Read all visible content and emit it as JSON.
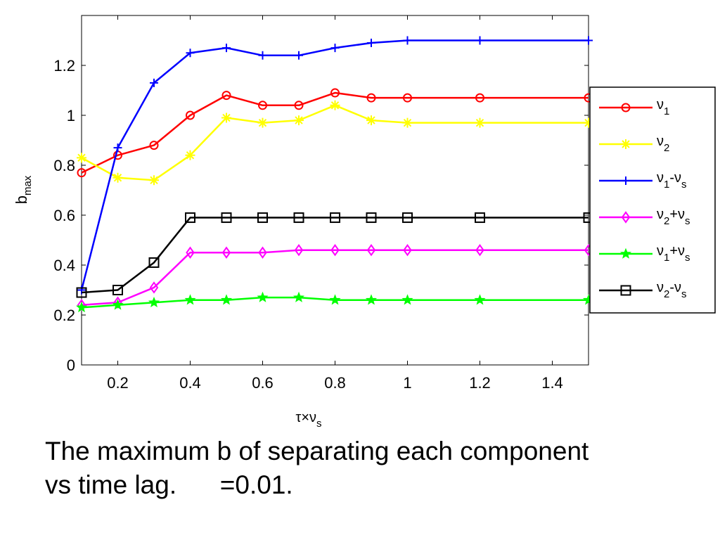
{
  "caption": {
    "line1": "The maximum b of separating each component",
    "line2": "vs time lag.      =0.01."
  },
  "chart_data": {
    "type": "line",
    "ylabel": "b",
    "ylabel_sub": "max",
    "xlabel": "τ×ν",
    "xlabel_sub": "s",
    "xlim": [
      0.1,
      1.5
    ],
    "ylim": [
      0,
      1.4
    ],
    "xticks": [
      0.2,
      0.4,
      0.6,
      0.8,
      1,
      1.2,
      1.4
    ],
    "xtick_labels": [
      "0.2",
      "0.4",
      "0.6",
      "0.8",
      "1",
      "1.2",
      "1.4"
    ],
    "yticks": [
      0,
      0.2,
      0.4,
      0.6,
      0.8,
      1,
      1.2
    ],
    "ytick_labels": [
      "0",
      "0.2",
      "0.4",
      "0.6",
      "0.8",
      "1",
      "1.2"
    ],
    "grid": false,
    "legend_position": "right, outside",
    "x": [
      0.1,
      0.2,
      0.3,
      0.4,
      0.5,
      0.6,
      0.7,
      0.8,
      0.9,
      1.0,
      1.2,
      1.5
    ],
    "series": [
      {
        "name": "ν1",
        "label_main": "ν",
        "sub1": "1",
        "op": "",
        "sub2": "",
        "color": "#ff0000",
        "marker": "circle",
        "values": [
          0.77,
          0.84,
          0.88,
          1.0,
          1.08,
          1.04,
          1.04,
          1.09,
          1.07,
          1.07,
          1.07,
          1.07
        ]
      },
      {
        "name": "ν2",
        "label_main": "ν",
        "sub1": "2",
        "op": "",
        "sub2": "",
        "color": "#ffff00",
        "marker": "star",
        "values": [
          0.83,
          0.75,
          0.74,
          0.84,
          0.99,
          0.97,
          0.98,
          1.04,
          0.98,
          0.97,
          0.97,
          0.97
        ]
      },
      {
        "name": "ν1-νs",
        "label_main": "ν",
        "sub1": "1",
        "op": "-ν",
        "sub2": "s",
        "color": "#0000ff",
        "marker": "plus",
        "values": [
          0.3,
          0.87,
          1.13,
          1.25,
          1.27,
          1.24,
          1.24,
          1.27,
          1.29,
          1.3,
          1.3,
          1.3
        ]
      },
      {
        "name": "ν2+νs",
        "label_main": "ν",
        "sub1": "2",
        "op": "+ν",
        "sub2": "s",
        "color": "#ff00ff",
        "marker": "diamond",
        "values": [
          0.24,
          0.25,
          0.31,
          0.45,
          0.45,
          0.45,
          0.46,
          0.46,
          0.46,
          0.46,
          0.46,
          0.46
        ]
      },
      {
        "name": "ν1+νs",
        "label_main": "ν",
        "sub1": "1",
        "op": "+ν",
        "sub2": "s",
        "color": "#00ff00",
        "marker": "pentagram",
        "values": [
          0.23,
          0.24,
          0.25,
          0.26,
          0.26,
          0.27,
          0.27,
          0.26,
          0.26,
          0.26,
          0.26,
          0.26
        ]
      },
      {
        "name": "ν2-νs",
        "label_main": "ν",
        "sub1": "2",
        "op": "-ν",
        "sub2": "s",
        "color": "#000000",
        "marker": "square",
        "values": [
          0.29,
          0.3,
          0.41,
          0.59,
          0.59,
          0.59,
          0.59,
          0.59,
          0.59,
          0.59,
          0.59,
          0.59
        ]
      }
    ]
  }
}
